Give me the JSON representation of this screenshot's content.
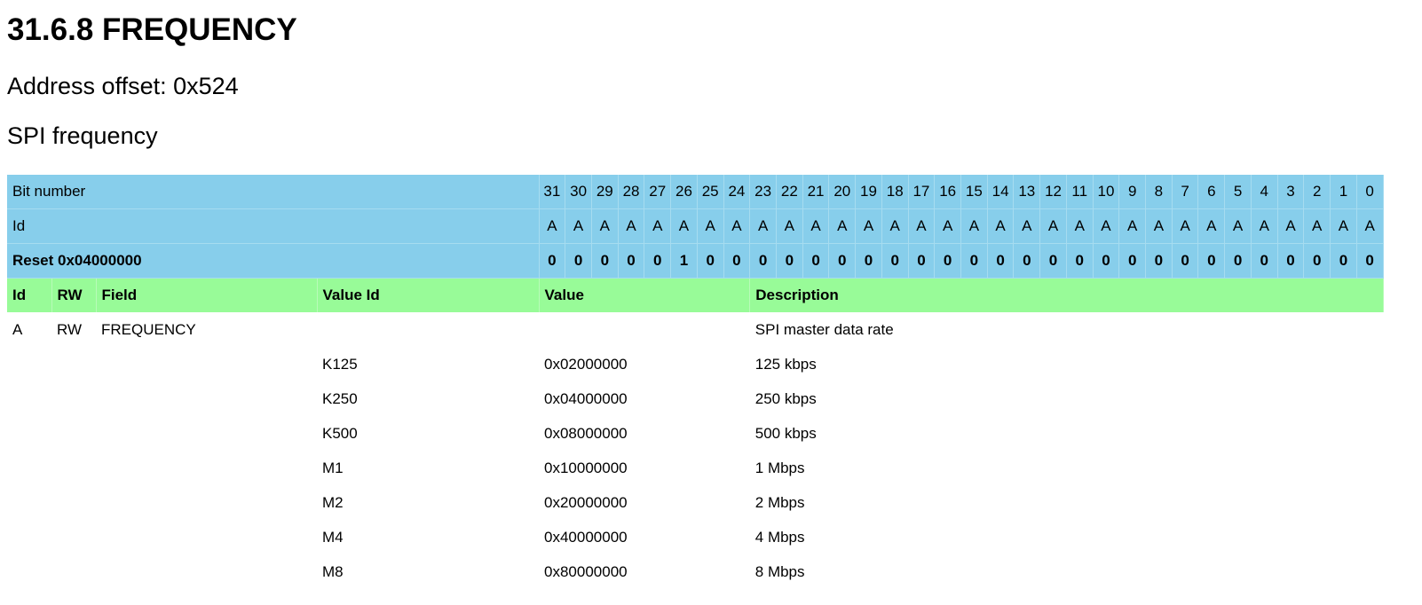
{
  "title": "31.6.8 FREQUENCY",
  "address_offset": "Address offset: 0x524",
  "description": "SPI frequency",
  "register": {
    "bit_number_label": "Bit number",
    "id_label": "Id",
    "reset_label": "Reset 0x04000000",
    "bits": [
      "31",
      "30",
      "29",
      "28",
      "27",
      "26",
      "25",
      "24",
      "23",
      "22",
      "21",
      "20",
      "19",
      "18",
      "17",
      "16",
      "15",
      "14",
      "13",
      "12",
      "11",
      "10",
      "9",
      "8",
      "7",
      "6",
      "5",
      "4",
      "3",
      "2",
      "1",
      "0"
    ],
    "ids": [
      "A",
      "A",
      "A",
      "A",
      "A",
      "A",
      "A",
      "A",
      "A",
      "A",
      "A",
      "A",
      "A",
      "A",
      "A",
      "A",
      "A",
      "A",
      "A",
      "A",
      "A",
      "A",
      "A",
      "A",
      "A",
      "A",
      "A",
      "A",
      "A",
      "A",
      "A",
      "A"
    ],
    "reset": [
      "0",
      "0",
      "0",
      "0",
      "0",
      "1",
      "0",
      "0",
      "0",
      "0",
      "0",
      "0",
      "0",
      "0",
      "0",
      "0",
      "0",
      "0",
      "0",
      "0",
      "0",
      "0",
      "0",
      "0",
      "0",
      "0",
      "0",
      "0",
      "0",
      "0",
      "0",
      "0"
    ]
  },
  "fields_header": {
    "id": "Id",
    "rw": "RW",
    "field": "Field",
    "value_id": "Value Id",
    "value": "Value",
    "description": "Description"
  },
  "field": {
    "id": "A",
    "rw": "RW",
    "name": "FREQUENCY",
    "description": "SPI master data rate"
  },
  "values": [
    {
      "id": "K125",
      "value": "0x02000000",
      "description": "125 kbps"
    },
    {
      "id": "K250",
      "value": "0x04000000",
      "description": "250 kbps"
    },
    {
      "id": "K500",
      "value": "0x08000000",
      "description": "500 kbps"
    },
    {
      "id": "M1",
      "value": "0x10000000",
      "description": "1 Mbps"
    },
    {
      "id": "M2",
      "value": "0x20000000",
      "description": "2 Mbps"
    },
    {
      "id": "M4",
      "value": "0x40000000",
      "description": "4 Mbps"
    },
    {
      "id": "M8",
      "value": "0x80000000",
      "description": "8 Mbps"
    }
  ],
  "colors": {
    "register_bg": "#87ceeb",
    "header_bg": "#98fb98"
  }
}
